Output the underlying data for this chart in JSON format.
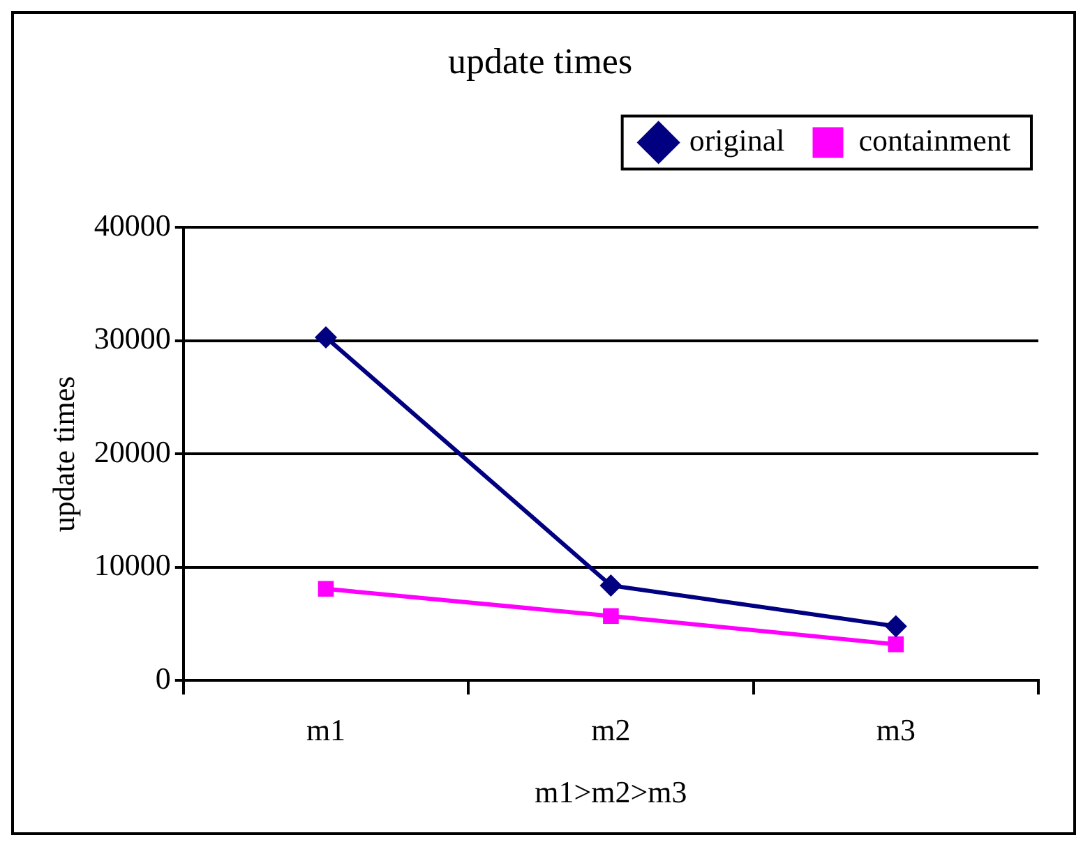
{
  "chart_data": {
    "type": "line",
    "title": "update times",
    "xlabel": "m1>m2>m3",
    "ylabel": "update times",
    "categories": [
      "m1",
      "m2",
      "m3"
    ],
    "series": [
      {
        "name": "original",
        "color": "#000080",
        "values": [
          30300,
          8400,
          4800
        ],
        "marker": "diamond"
      },
      {
        "name": "containment",
        "color": "#ff00ff",
        "values": [
          8100,
          5700,
          3200
        ],
        "marker": "square"
      }
    ],
    "ylim": [
      0,
      40000
    ],
    "yticks": [
      0,
      10000,
      20000,
      30000,
      40000
    ],
    "grid": "y",
    "legend": "top"
  }
}
